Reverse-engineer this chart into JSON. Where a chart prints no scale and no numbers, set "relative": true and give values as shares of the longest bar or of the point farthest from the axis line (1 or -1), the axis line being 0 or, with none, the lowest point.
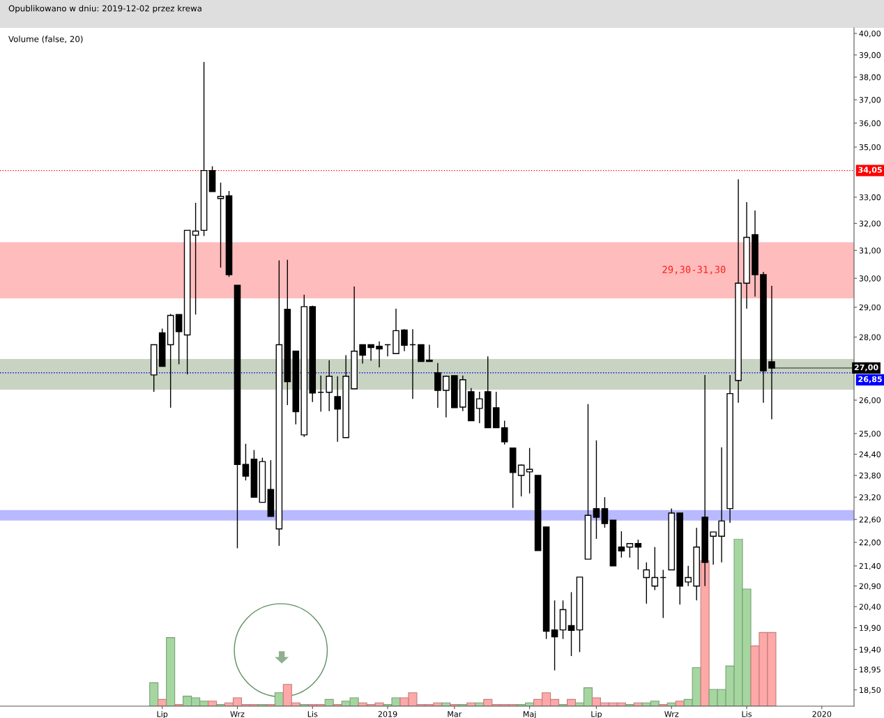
{
  "chart_data": [
    {
      "type": "candlestick",
      "x": [
        "2018-06-25",
        "2018-07-02",
        "2018-07-09",
        "2018-07-16",
        "2018-07-23",
        "2018-07-30",
        "2018-08-06",
        "2018-08-13",
        "2018-08-20",
        "2018-08-27",
        "2018-09-03",
        "2018-09-10",
        "2018-09-17",
        "2018-09-24",
        "2018-10-01",
        "2018-10-08",
        "2018-10-15",
        "2018-10-22",
        "2018-10-29",
        "2018-11-05",
        "2018-11-12",
        "2018-11-19",
        "2018-11-26",
        "2018-12-03",
        "2018-12-10",
        "2018-12-17",
        "2018-12-24",
        "2018-12-31",
        "2019-01-07",
        "2019-01-14",
        "2019-01-21",
        "2019-01-28",
        "2019-02-04",
        "2019-02-11",
        "2019-02-18",
        "2019-02-25",
        "2019-03-04",
        "2019-03-11",
        "2019-03-18",
        "2019-03-25",
        "2019-04-01",
        "2019-04-08",
        "2019-04-15",
        "2019-04-22",
        "2019-04-29",
        "2019-05-06",
        "2019-05-13",
        "2019-05-20",
        "2019-05-27",
        "2019-06-03",
        "2019-06-10",
        "2019-06-17",
        "2019-06-24",
        "2019-07-01",
        "2019-07-08",
        "2019-07-15",
        "2019-07-22",
        "2019-07-29",
        "2019-08-05",
        "2019-08-12",
        "2019-08-19",
        "2019-08-26",
        "2019-09-02",
        "2019-09-09",
        "2019-09-16",
        "2019-09-23",
        "2019-09-30",
        "2019-10-07",
        "2019-10-14",
        "2019-10-21",
        "2019-10-28",
        "2019-11-04",
        "2019-11-11",
        "2019-11-18",
        "2019-11-25"
      ],
      "ohlc": [
        [
          26.78,
          27.75,
          26.26,
          27.75
        ],
        [
          28.14,
          28.28,
          27.05,
          27.05
        ],
        [
          27.75,
          28.77,
          25.77,
          28.72
        ],
        [
          28.75,
          28.75,
          27.12,
          28.18
        ],
        [
          28.07,
          31.74,
          26.8,
          31.74
        ],
        [
          31.56,
          32.78,
          28.75,
          31.71
        ],
        [
          31.74,
          38.68,
          31.53,
          34.05
        ],
        [
          34.05,
          34.22,
          33.22,
          33.22
        ],
        [
          32.95,
          33.57,
          30.38,
          33.03
        ],
        [
          33.05,
          33.24,
          30.05,
          30.13
        ],
        [
          29.76,
          29.76,
          21.85,
          24.11
        ],
        [
          24.11,
          24.7,
          23.66,
          23.78
        ],
        [
          24.26,
          24.52,
          23.2,
          23.2
        ],
        [
          23.06,
          24.3,
          23.06,
          24.19
        ],
        [
          23.41,
          24.23,
          22.68,
          22.68
        ],
        [
          22.35,
          30.64,
          21.91,
          27.75
        ],
        [
          28.93,
          30.66,
          25.85,
          26.57
        ],
        [
          27.54,
          27.54,
          25.27,
          25.65
        ],
        [
          24.96,
          29.43,
          24.9,
          29.02
        ],
        [
          29.02,
          29.05,
          25.94,
          26.22
        ],
        [
          26.24,
          26.76,
          25.65,
          26.24
        ],
        [
          26.24,
          27.25,
          25.67,
          26.74
        ],
        [
          26.11,
          26.74,
          24.76,
          25.73
        ],
        [
          24.88,
          27.41,
          24.88,
          26.74
        ],
        [
          26.35,
          29.71,
          26.35,
          27.54
        ],
        [
          27.75,
          27.75,
          27.14,
          27.41
        ],
        [
          27.75,
          27.75,
          27.23,
          27.66
        ],
        [
          27.7,
          27.86,
          27.02,
          27.61
        ],
        [
          27.75,
          27.75,
          27.37,
          27.75
        ],
        [
          27.46,
          28.95,
          27.46,
          28.21
        ],
        [
          28.23,
          28.26,
          27.54,
          27.73
        ],
        [
          27.75,
          28.26,
          26.04,
          27.75
        ],
        [
          27.75,
          27.75,
          27.21,
          27.21
        ],
        [
          27.25,
          27.75,
          27.21,
          27.21
        ],
        [
          26.85,
          27.16,
          25.77,
          26.3
        ],
        [
          26.3,
          26.76,
          25.48,
          26.74
        ],
        [
          26.76,
          26.76,
          25.77,
          25.77
        ],
        [
          25.79,
          26.76,
          25.67,
          26.63
        ],
        [
          26.26,
          26.37,
          25.38,
          25.38
        ],
        [
          25.75,
          26.26,
          25.31,
          26.04
        ],
        [
          26.26,
          27.37,
          25.17,
          25.17
        ],
        [
          25.77,
          26.26,
          25.17,
          25.17
        ],
        [
          25.17,
          25.38,
          24.68,
          24.76
        ],
        [
          24.58,
          24.58,
          22.91,
          23.88
        ],
        [
          23.8,
          24.11,
          23.22,
          24.09
        ],
        [
          23.9,
          24.58,
          23.3,
          23.97
        ],
        [
          23.8,
          23.8,
          21.79,
          21.79
        ],
        [
          22.4,
          22.4,
          19.64,
          19.82
        ],
        [
          19.85,
          20.55,
          18.93,
          19.69
        ],
        [
          19.85,
          20.55,
          19.64,
          20.33
        ],
        [
          19.95,
          20.75,
          19.25,
          19.84
        ],
        [
          19.85,
          21.12,
          19.34,
          21.12
        ],
        [
          21.57,
          25.88,
          21.57,
          22.71
        ],
        [
          22.89,
          24.8,
          22.09,
          22.66
        ],
        [
          22.89,
          23.2,
          22.38,
          22.49
        ],
        [
          22.58,
          22.58,
          21.4,
          21.4
        ],
        [
          21.88,
          22.29,
          21.61,
          21.78
        ],
        [
          21.88,
          21.97,
          21.61,
          21.97
        ],
        [
          21.97,
          22.07,
          21.31,
          21.88
        ],
        [
          21.11,
          21.49,
          20.47,
          21.3
        ],
        [
          20.9,
          21.88,
          20.8,
          21.11
        ],
        [
          21.11,
          21.3,
          20.13,
          21.11
        ],
        [
          21.3,
          22.89,
          21.3,
          22.77
        ],
        [
          22.77,
          22.77,
          20.45,
          20.9
        ],
        [
          21.0,
          21.4,
          20.9,
          21.11
        ],
        [
          20.9,
          22.38,
          20.55,
          21.88
        ],
        [
          22.66,
          26.78,
          20.9,
          21.49
        ],
        [
          22.16,
          22.27,
          21.43,
          22.27
        ],
        [
          22.16,
          24.6,
          21.49,
          22.56
        ],
        [
          22.89,
          26.78,
          22.51,
          26.2
        ],
        [
          26.61,
          33.7,
          25.92,
          29.83
        ],
        [
          29.83,
          32.81,
          28.95,
          31.48
        ],
        [
          31.58,
          32.49,
          29.36,
          30.13
        ],
        [
          30.13,
          30.23,
          25.92,
          26.91
        ],
        [
          27.2,
          29.74,
          25.42,
          27.0
        ]
      ],
      "log": true,
      "xlim": [
        "2018-02-16",
        "2020-02-02"
      ],
      "xticks": [
        {
          "value": "2018-07-02",
          "label": "Lip"
        },
        {
          "value": "2018-09-03",
          "label": "Wrz"
        },
        {
          "value": "2018-11-05",
          "label": "Lis"
        },
        {
          "value": "2019-01-07",
          "label": "2019"
        },
        {
          "value": "2019-03-04",
          "label": "Mar"
        },
        {
          "value": "2019-05-06",
          "label": "Maj"
        },
        {
          "value": "2019-07-01",
          "label": "Lip"
        },
        {
          "value": "2019-09-02",
          "label": "Wrz"
        },
        {
          "value": "2019-11-04",
          "label": "Lis"
        },
        {
          "value": "2020-01-06",
          "label": "2020"
        }
      ],
      "ylim": [
        18.15,
        40.26
      ],
      "yticks": [
        {
          "value": 40,
          "label": "40,00"
        },
        {
          "value": 39,
          "label": "39,00"
        },
        {
          "value": 38,
          "label": "38,00"
        },
        {
          "value": 37,
          "label": "37,00"
        },
        {
          "value": 36,
          "label": "36,00"
        },
        {
          "value": 35,
          "label": "35,00"
        },
        {
          "value": 33,
          "label": "33,00"
        },
        {
          "value": 32,
          "label": "32,00"
        },
        {
          "value": 31,
          "label": "31,00"
        },
        {
          "value": 30,
          "label": "30,00"
        },
        {
          "value": 29,
          "label": "29,00"
        },
        {
          "value": 28,
          "label": "28,00"
        },
        {
          "value": 26,
          "label": "26,00"
        },
        {
          "value": 25,
          "label": "25,00"
        },
        {
          "value": 24.4,
          "label": "24,40"
        },
        {
          "value": 23.8,
          "label": "23,80"
        },
        {
          "value": 23.2,
          "label": "23,20"
        },
        {
          "value": 22.6,
          "label": "22,60"
        },
        {
          "value": 22,
          "label": "22,00"
        },
        {
          "value": 21.4,
          "label": "21,40"
        },
        {
          "value": 20.9,
          "label": "20,90"
        },
        {
          "value": 20.4,
          "label": "20,40"
        },
        {
          "value": 19.9,
          "label": "19,90"
        },
        {
          "value": 19.4,
          "label": "19,40"
        },
        {
          "value": 18.95,
          "label": "18,95"
        },
        {
          "value": 18.5,
          "label": "18,50"
        }
      ],
      "ref_lines": [
        {
          "axis": "y",
          "value": 34.05,
          "label": "34,05",
          "color": "#ff0000",
          "line_style": "dotted"
        },
        {
          "axis": "y",
          "value": 26.85,
          "label": "26,85",
          "color": "#0000ff",
          "line_style": "dotted"
        }
      ],
      "bands": [
        {
          "axis": "y",
          "from": 29.3,
          "to": 31.3,
          "label": "29,30-31,30",
          "color": "#ffbcbc"
        },
        {
          "axis": "y",
          "from": 26.32,
          "to": 27.29,
          "color": "#c8d3c1"
        },
        {
          "axis": "y",
          "from": 22.57,
          "to": 22.85,
          "color": "#b9b9ff"
        }
      ],
      "annotations": [
        "Opublikowano w dniu: 2019-12-02 przez krewa",
        "Volume (false, 20)",
        {
          "text": "27,00",
          "x": "2019-11-25",
          "y": 27.0
        }
      ],
      "grid": false,
      "legend": false
    },
    {
      "type": "bar",
      "relative": true,
      "x": [
        "2018-06-25",
        "2018-07-02",
        "2018-07-09",
        "2018-07-16",
        "2018-07-23",
        "2018-07-30",
        "2018-08-06",
        "2018-08-13",
        "2018-08-20",
        "2018-08-27",
        "2018-09-03",
        "2018-09-10",
        "2018-09-17",
        "2018-09-24",
        "2018-10-01",
        "2018-10-08",
        "2018-10-15",
        "2018-10-22",
        "2018-10-29",
        "2018-11-05",
        "2018-11-12",
        "2018-11-19",
        "2018-11-26",
        "2018-12-03",
        "2018-12-10",
        "2018-12-17",
        "2018-12-24",
        "2018-12-31",
        "2019-01-07",
        "2019-01-14",
        "2019-01-21",
        "2019-01-28",
        "2019-02-04",
        "2019-02-11",
        "2019-02-18",
        "2019-02-25",
        "2019-03-04",
        "2019-03-11",
        "2019-03-18",
        "2019-03-25",
        "2019-04-01",
        "2019-04-08",
        "2019-04-15",
        "2019-04-22",
        "2019-04-29",
        "2019-05-06",
        "2019-05-13",
        "2019-05-20",
        "2019-05-27",
        "2019-06-03",
        "2019-06-10",
        "2019-06-17",
        "2019-06-24",
        "2019-07-01",
        "2019-07-08",
        "2019-07-15",
        "2019-07-22",
        "2019-07-29",
        "2019-08-05",
        "2019-08-12",
        "2019-08-19",
        "2019-08-26",
        "2019-09-02",
        "2019-09-09",
        "2019-09-16",
        "2019-09-23",
        "2019-09-30",
        "2019-10-07",
        "2019-10-14",
        "2019-10-21",
        "2019-10-28",
        "2019-11-04",
        "2019-11-11",
        "2019-11-18",
        "2019-11-25"
      ],
      "xlim": [
        "2018-02-16",
        "2020-02-02"
      ],
      "values": [
        0.14,
        0.04,
        0.41,
        0.01,
        0.06,
        0.05,
        0.03,
        0.03,
        0.01,
        0.02,
        0.05,
        0.01,
        0.01,
        0.01,
        0.01,
        0.08,
        0.13,
        0.02,
        0.01,
        0.01,
        0.01,
        0.04,
        0.01,
        0.03,
        0.05,
        0.02,
        0.01,
        0.02,
        0.01,
        0.05,
        0.05,
        0.08,
        0.01,
        0.01,
        0.02,
        0.02,
        0.01,
        0.01,
        0.02,
        0.02,
        0.04,
        0.01,
        0.01,
        0.01,
        0.01,
        0.02,
        0.04,
        0.08,
        0.04,
        0.01,
        0.04,
        0.02,
        0.11,
        0.05,
        0.02,
        0.02,
        0.02,
        0.01,
        0.02,
        0.02,
        0.03,
        0.01,
        0.02,
        0.03,
        0.04,
        0.23,
        0.87,
        0.1,
        0.1,
        0.24,
        1,
        0.7,
        0.36,
        0.44,
        0.44
      ],
      "colors": [
        "#a5d6a0",
        "#ffa8a8",
        "#a5d6a0",
        "#ffa8a8",
        "#a5d6a0",
        "#a5d6a0",
        "#a5d6a0",
        "#ffa8a8",
        "#a5d6a0",
        "#ffa8a8",
        "#ffa8a8",
        "#ffa8a8",
        "#ffa8a8",
        "#a5d6a0",
        "#ffa8a8",
        "#a5d6a0",
        "#ffa8a8",
        "#ffa8a8",
        "#a5d6a0",
        "#ffa8a8",
        "#ffa8a8",
        "#a5d6a0",
        "#ffa8a8",
        "#a5d6a0",
        "#a5d6a0",
        "#ffa8a8",
        "#ffa8a8",
        "#ffa8a8",
        "#a5d6a0",
        "#a5d6a0",
        "#ffa8a8",
        "#ffa8a8",
        "#ffa8a8",
        "#ffa8a8",
        "#ffa8a8",
        "#a5d6a0",
        "#ffa8a8",
        "#a5d6a0",
        "#ffa8a8",
        "#a5d6a0",
        "#ffa8a8",
        "#ffa8a8",
        "#ffa8a8",
        "#ffa8a8",
        "#a5d6a0",
        "#a5d6a0",
        "#ffa8a8",
        "#ffa8a8",
        "#ffa8a8",
        "#a5d6a0",
        "#ffa8a8",
        "#a5d6a0",
        "#a5d6a0",
        "#ffa8a8",
        "#ffa8a8",
        "#ffa8a8",
        "#ffa8a8",
        "#a5d6a0",
        "#ffa8a8",
        "#a5d6a0",
        "#a5d6a0",
        "#ffa8a8",
        "#a5d6a0",
        "#ffa8a8",
        "#a5d6a0",
        "#a5d6a0",
        "#ffa8a8",
        "#a5d6a0",
        "#a5d6a0",
        "#a5d6a0",
        "#a5d6a0",
        "#a5d6a0",
        "#ffa8a8",
        "#ffa8a8",
        "#ffa8a8"
      ]
    }
  ]
}
